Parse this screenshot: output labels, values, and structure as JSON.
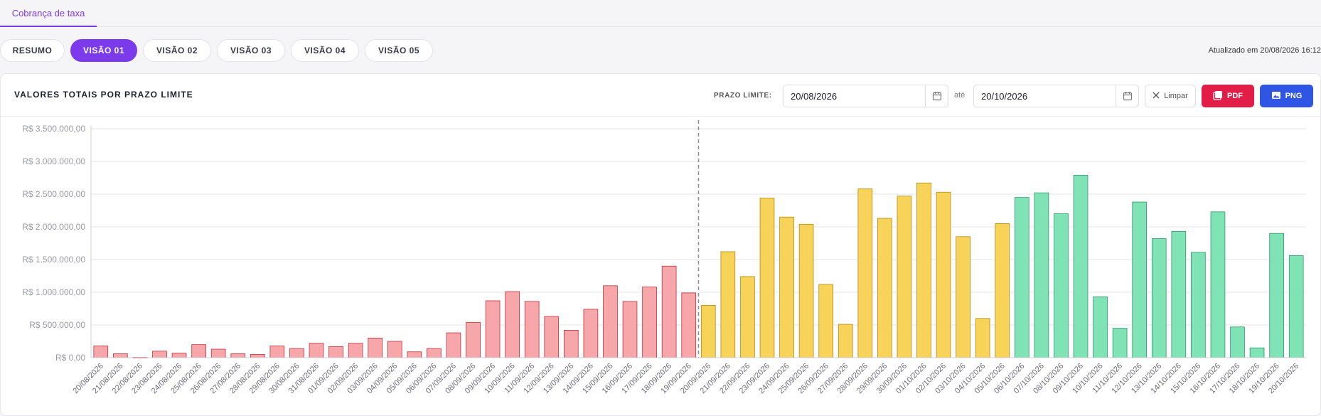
{
  "top_tab": {
    "label": "Cobrança de taxa"
  },
  "view_tabs": [
    {
      "label": "RESUMO",
      "active": false
    },
    {
      "label": "VISÃO 01",
      "active": true
    },
    {
      "label": "VISÃO 02",
      "active": false
    },
    {
      "label": "VISÃO 03",
      "active": false
    },
    {
      "label": "VISÃO 04",
      "active": false
    },
    {
      "label": "VISÃO 05",
      "active": false
    }
  ],
  "updated_text": "Atualizado em 20/08/2026 16:12",
  "panel": {
    "title": "VALORES TOTAIS POR PRAZO LIMITE",
    "filter_label": "PRAZO LIMITE:",
    "date_from": "20/08/2026",
    "separator": "até",
    "date_to": "20/10/2026",
    "clear_label": "Limpar",
    "pdf_label": "PDF",
    "png_label": "PNG"
  },
  "colors": {
    "accent": "#7c3aed",
    "past_fill": "#f7a7a9",
    "past_stroke": "#c0313b",
    "current_fill": "#f8d35a",
    "current_stroke": "#b58a12",
    "future_fill": "#7fe3b6",
    "future_stroke": "#2e9a6a"
  },
  "chart_data": {
    "type": "bar",
    "ylim": [
      0,
      3500000
    ],
    "ytick_values": [
      0,
      500000,
      1000000,
      1500000,
      2000000,
      2500000,
      3000000,
      3500000
    ],
    "ytick_labels": [
      "R$ 0,00",
      "R$ 500.000,00",
      "R$ 1.000.000,00",
      "R$ 1.500.000,00",
      "R$ 2.000.000,00",
      "R$ 2.500.000,00",
      "R$ 3.000.000,00",
      "R$ 3.500.000,00"
    ],
    "grid": true,
    "reference_line_after": "19/09/2026",
    "categories": [
      "20/08/2026",
      "21/08/2026",
      "22/08/2026",
      "23/08/2026",
      "24/08/2026",
      "25/08/2026",
      "26/08/2026",
      "27/08/2026",
      "28/08/2026",
      "29/08/2026",
      "30/08/2026",
      "31/08/2026",
      "01/09/2026",
      "02/09/2026",
      "03/09/2026",
      "04/09/2026",
      "05/09/2026",
      "06/09/2026",
      "07/09/2026",
      "08/09/2026",
      "09/09/2026",
      "10/09/2026",
      "11/09/2026",
      "12/09/2026",
      "13/09/2026",
      "14/09/2026",
      "15/09/2026",
      "16/09/2026",
      "17/09/2026",
      "18/09/2026",
      "19/09/2026",
      "20/09/2026",
      "21/09/2026",
      "22/09/2026",
      "23/09/2026",
      "24/09/2026",
      "25/09/2026",
      "26/09/2026",
      "27/09/2026",
      "28/09/2026",
      "29/09/2026",
      "30/09/2026",
      "01/10/2026",
      "02/10/2026",
      "03/10/2026",
      "04/10/2026",
      "05/10/2026",
      "06/10/2026",
      "07/10/2026",
      "08/10/2026",
      "09/10/2026",
      "10/10/2026",
      "11/10/2026",
      "12/10/2026",
      "13/10/2026",
      "14/10/2026",
      "15/10/2026",
      "16/10/2026",
      "17/10/2026",
      "18/10/2026",
      "19/10/2026",
      "20/10/2026"
    ],
    "values": [
      180000,
      60000,
      5000,
      100000,
      70000,
      200000,
      130000,
      60000,
      50000,
      180000,
      140000,
      220000,
      170000,
      220000,
      300000,
      250000,
      90000,
      140000,
      380000,
      540000,
      870000,
      1010000,
      860000,
      630000,
      420000,
      740000,
      1100000,
      860000,
      1080000,
      1400000,
      990000,
      800000,
      1620000,
      1240000,
      2440000,
      2150000,
      2040000,
      1120000,
      510000,
      2580000,
      2130000,
      2470000,
      2670000,
      2530000,
      1850000,
      600000,
      2050000,
      2450000,
      2520000,
      2200000,
      2790000,
      930000,
      450000,
      2380000,
      1820000,
      1930000,
      1610000,
      2230000,
      470000,
      150000,
      1900000,
      1560000
    ],
    "groups": [
      "past",
      "past",
      "past",
      "past",
      "past",
      "past",
      "past",
      "past",
      "past",
      "past",
      "past",
      "past",
      "past",
      "past",
      "past",
      "past",
      "past",
      "past",
      "past",
      "past",
      "past",
      "past",
      "past",
      "past",
      "past",
      "past",
      "past",
      "past",
      "past",
      "past",
      "past",
      "current",
      "current",
      "current",
      "current",
      "current",
      "current",
      "current",
      "current",
      "current",
      "current",
      "current",
      "current",
      "current",
      "current",
      "current",
      "current",
      "future",
      "future",
      "future",
      "future",
      "future",
      "future",
      "future",
      "future",
      "future",
      "future",
      "future",
      "future",
      "future",
      "future",
      "future"
    ]
  }
}
